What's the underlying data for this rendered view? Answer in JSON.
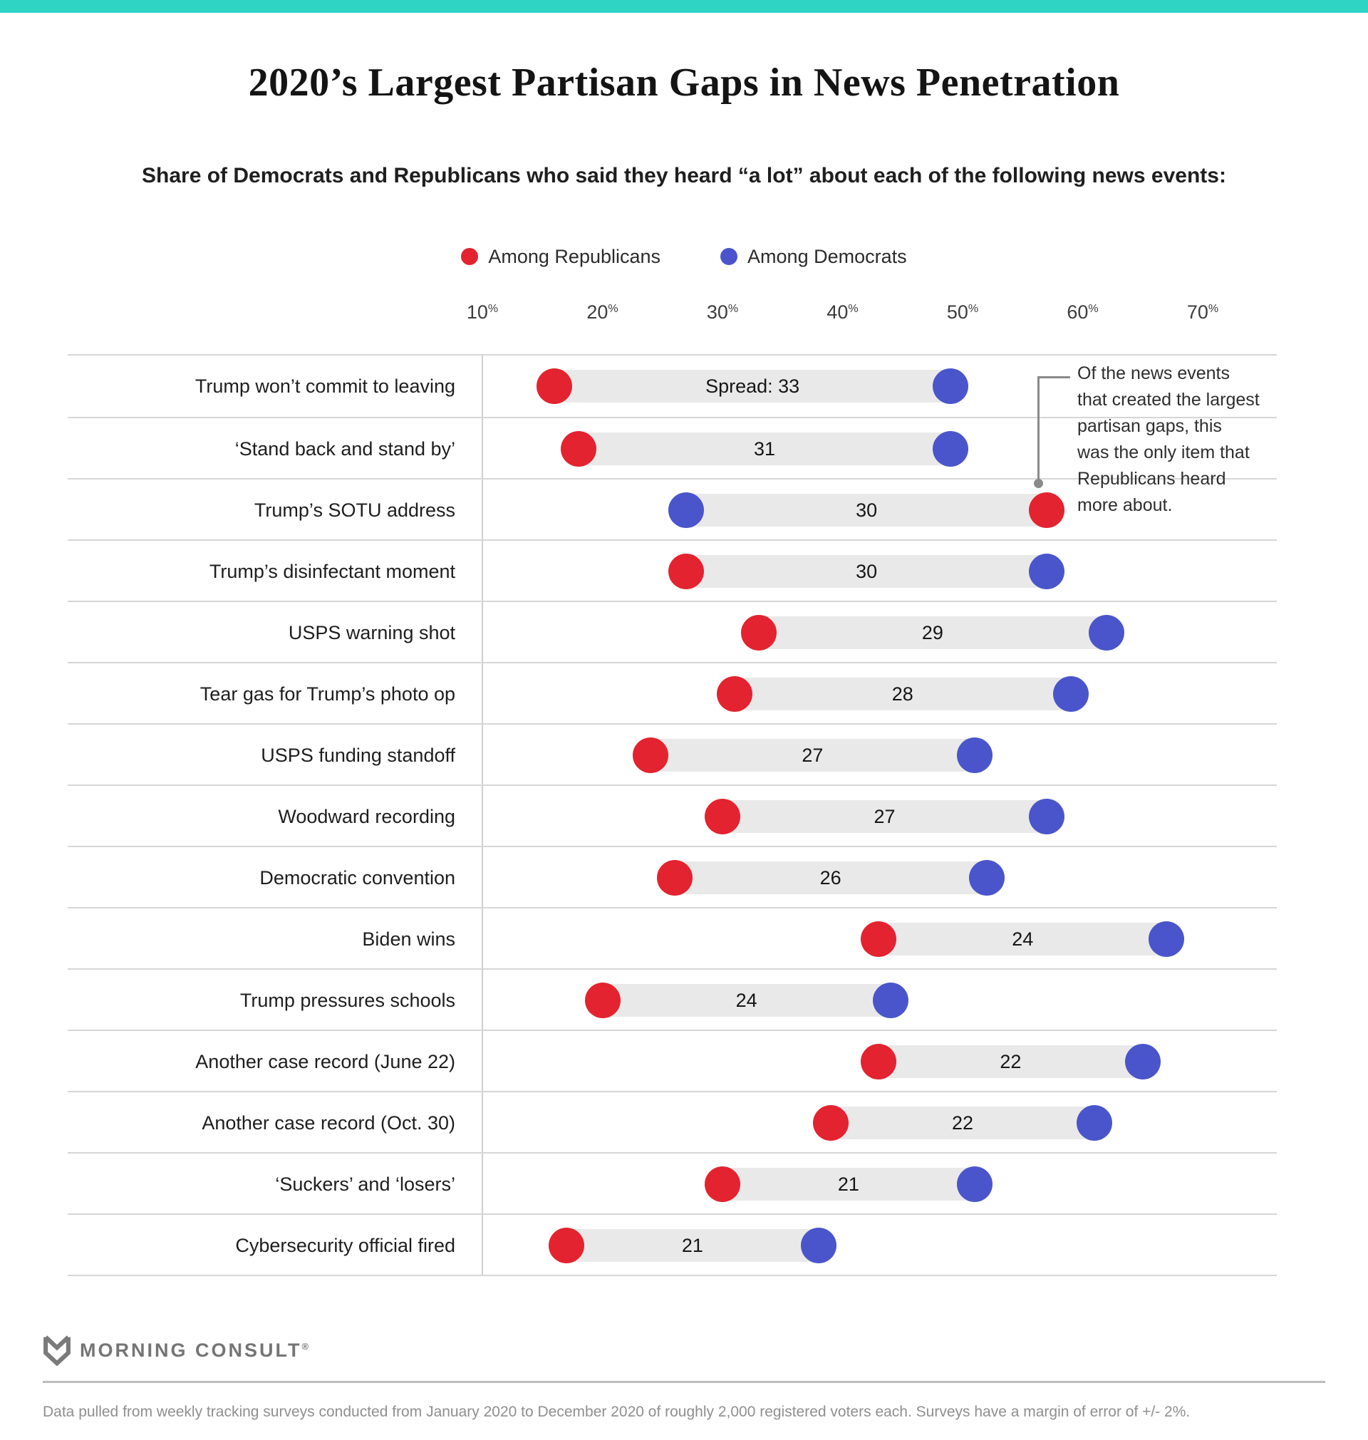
{
  "accent_color": "#2fd4c5",
  "title": "2020’s Largest Partisan Gaps in News Penetration",
  "subtitle": "Share of Democrats and Republicans who said they heard “a lot” about each of the following news events:",
  "legend": {
    "republicans": {
      "label": "Among Republicans",
      "color": "#e3232f"
    },
    "democrats": {
      "label": "Among Democrats",
      "color": "#4a55cc"
    }
  },
  "annotation": {
    "lines": [
      "Of the news events",
      "that created the largest",
      "partisan gaps, this",
      "was the only item that",
      "Republicans heard",
      "more about."
    ]
  },
  "chart_data": {
    "type": "dumbbell",
    "title": "2020’s Largest Partisan Gaps in News Penetration",
    "xlim": [
      10,
      70
    ],
    "axis_ticks": [
      10,
      20,
      30,
      40,
      50,
      60,
      70
    ],
    "tick_suffix": "%",
    "grid": "horizontal-row-lines",
    "legend_position": "top-center",
    "series_names": [
      "Among Republicans",
      "Among Democrats"
    ],
    "rows": [
      {
        "label": "Trump won’t commit to leaving",
        "republican": 16,
        "democrat": 49,
        "spread": 33,
        "spread_label": "Spread: 33"
      },
      {
        "label": "‘Stand back and stand by’",
        "republican": 18,
        "democrat": 49,
        "spread": 31,
        "spread_label": "31"
      },
      {
        "label": "Trump’s SOTU address",
        "republican": 57,
        "democrat": 27,
        "spread": 30,
        "spread_label": "30"
      },
      {
        "label": "Trump’s disinfectant moment",
        "republican": 27,
        "democrat": 57,
        "spread": 30,
        "spread_label": "30"
      },
      {
        "label": "USPS warning shot",
        "republican": 33,
        "democrat": 62,
        "spread": 29,
        "spread_label": "29"
      },
      {
        "label": "Tear gas for Trump’s photo op",
        "republican": 31,
        "democrat": 59,
        "spread": 28,
        "spread_label": "28"
      },
      {
        "label": "USPS funding standoff",
        "republican": 24,
        "democrat": 51,
        "spread": 27,
        "spread_label": "27"
      },
      {
        "label": "Woodward recording",
        "republican": 30,
        "democrat": 57,
        "spread": 27,
        "spread_label": "27"
      },
      {
        "label": "Democratic convention",
        "republican": 26,
        "democrat": 52,
        "spread": 26,
        "spread_label": "26"
      },
      {
        "label": "Biden wins",
        "republican": 43,
        "democrat": 67,
        "spread": 24,
        "spread_label": "24"
      },
      {
        "label": "Trump pressures schools",
        "republican": 20,
        "democrat": 44,
        "spread": 24,
        "spread_label": "24"
      },
      {
        "label": "Another case record (June 22)",
        "republican": 43,
        "democrat": 65,
        "spread": 22,
        "spread_label": "22"
      },
      {
        "label": "Another case record (Oct. 30)",
        "republican": 39,
        "democrat": 61,
        "spread": 22,
        "spread_label": "22"
      },
      {
        "label": "‘Suckers’ and ‘losers’",
        "republican": 30,
        "democrat": 51,
        "spread": 21,
        "spread_label": "21"
      },
      {
        "label": "Cybersecurity official fired",
        "republican": 17,
        "democrat": 38,
        "spread": 21,
        "spread_label": "21"
      }
    ]
  },
  "footer": {
    "brand": "MORNING CONSULT",
    "registered_mark": "®",
    "note": "Data pulled from weekly tracking surveys conducted from January 2020 to December 2020 of roughly 2,000 registered voters each. Surveys have a margin of error of +/- 2%."
  }
}
